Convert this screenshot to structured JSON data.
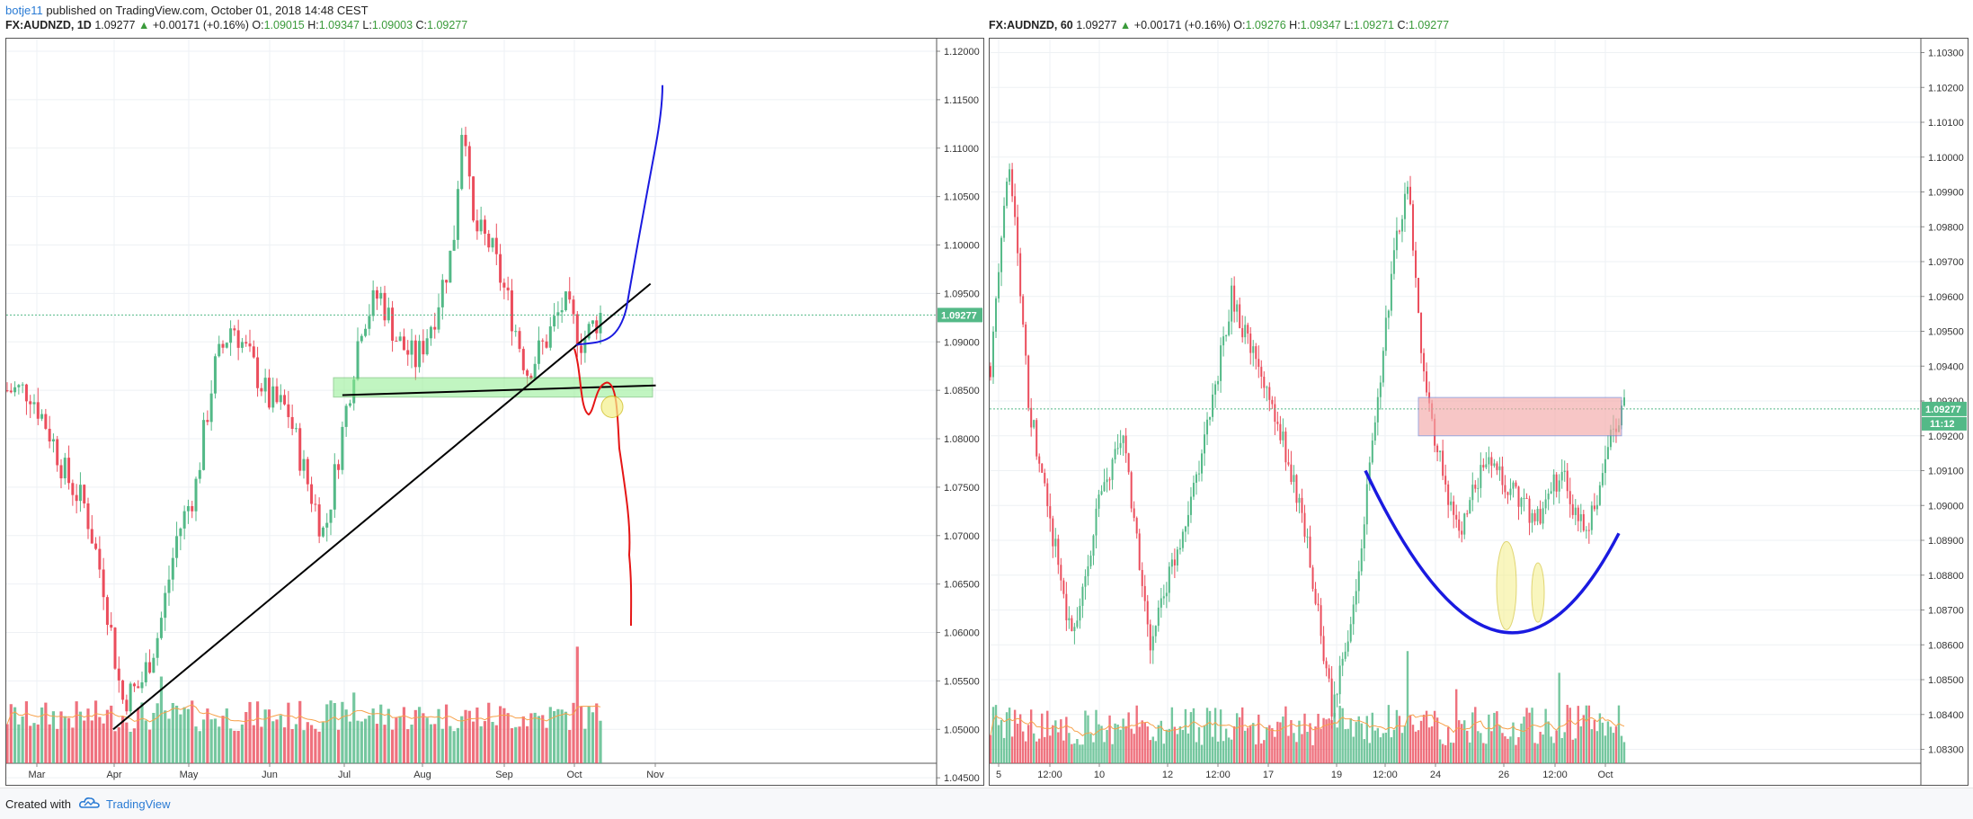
{
  "header": {
    "author": "botje11",
    "published": "published on TradingView.com, October 01, 2018 14:48 CEST"
  },
  "left_legend": {
    "symbol": "FX:AUDNZD, 1D",
    "last": "1.09277",
    "change": "+0.00171 (+0.16%)",
    "o_label": "O:",
    "o": "1.09015",
    "h_label": "H:",
    "h": "1.09347",
    "l_label": "L:",
    "l": "1.09003",
    "c_label": "C:",
    "c": "1.09277"
  },
  "right_legend": {
    "symbol": "FX:AUDNZD, 60",
    "last": "1.09277",
    "change": "+0.00171 (+0.16%)",
    "o_label": "O:",
    "o": "1.09276",
    "h_label": "H:",
    "h": "1.09347",
    "l_label": "L:",
    "l": "1.09271",
    "c_label": "C:",
    "c": "1.09277"
  },
  "colors": {
    "up": "#53b987",
    "down": "#eb4d5c",
    "volume_ma": "#f7a14a",
    "price_line": "#53b987",
    "grid": "#eef1f4",
    "axis_text": "#333333",
    "support_zone": "#90ee90",
    "resistance_zone": "#f4a9a9",
    "projection_up": "#1a1ae0",
    "projection_down": "#e51515",
    "trendline": "#000000",
    "cup": "#1a1ae0"
  },
  "footer": {
    "created_with": "Created with",
    "brand": "TradingView"
  },
  "chart_data": [
    {
      "type": "candlestick",
      "symbol": "FX:AUDNZD",
      "interval": "1D",
      "ylim": [
        1.0465,
        1.1213
      ],
      "y_ticks": [
        "1.12000",
        "1.11500",
        "1.11000",
        "1.10500",
        "1.10000",
        "1.09500",
        "1.09000",
        "1.08500",
        "1.08000",
        "1.07500",
        "1.07000",
        "1.06500",
        "1.06000",
        "1.05500",
        "1.05000",
        "1.04500"
      ],
      "x_ticks": [
        "Mar",
        "Apr",
        "May",
        "Jun",
        "Jul",
        "Aug",
        "Sep",
        "Oct",
        "Nov"
      ],
      "last_price_label": "1.09277",
      "legend": "none",
      "grid": true,
      "price_path": [
        {
          "date": "2018-02-26",
          "close": 1.085
        },
        {
          "date": "2018-03-05",
          "close": 1.081
        },
        {
          "date": "2018-03-12",
          "close": 1.076
        },
        {
          "date": "2018-03-19",
          "close": 1.073
        },
        {
          "date": "2018-03-26",
          "close": 1.065
        },
        {
          "date": "2018-04-02",
          "close": 1.053
        },
        {
          "date": "2018-04-09",
          "close": 1.0545
        },
        {
          "date": "2018-04-16",
          "close": 1.06
        },
        {
          "date": "2018-04-23",
          "close": 1.07
        },
        {
          "date": "2018-04-30",
          "close": 1.075
        },
        {
          "date": "2018-05-07",
          "close": 1.087
        },
        {
          "date": "2018-05-14",
          "close": 1.092
        },
        {
          "date": "2018-05-21",
          "close": 1.088
        },
        {
          "date": "2018-05-28",
          "close": 1.084
        },
        {
          "date": "2018-06-04",
          "close": 1.083
        },
        {
          "date": "2018-06-11",
          "close": 1.076
        },
        {
          "date": "2018-06-18",
          "close": 1.07
        },
        {
          "date": "2018-06-25",
          "close": 1.081
        },
        {
          "date": "2018-07-02",
          "close": 1.092
        },
        {
          "date": "2018-07-09",
          "close": 1.095
        },
        {
          "date": "2018-07-16",
          "close": 1.09
        },
        {
          "date": "2018-07-23",
          "close": 1.088
        },
        {
          "date": "2018-07-30",
          "close": 1.093
        },
        {
          "date": "2018-08-06",
          "close": 1.1
        },
        {
          "date": "2018-08-10",
          "close": 1.115
        },
        {
          "date": "2018-08-13",
          "close": 1.102
        },
        {
          "date": "2018-08-20",
          "close": 1.1
        },
        {
          "date": "2018-08-27",
          "close": 1.094
        },
        {
          "date": "2018-09-03",
          "close": 1.087
        },
        {
          "date": "2018-09-10",
          "close": 1.09
        },
        {
          "date": "2018-09-17",
          "close": 1.094
        },
        {
          "date": "2018-09-24",
          "close": 1.09
        },
        {
          "date": "2018-10-01",
          "close": 1.0928
        }
      ],
      "annotations": [
        {
          "kind": "zone",
          "label": "support",
          "y_range": [
            1.0843,
            1.0863
          ]
        },
        {
          "kind": "trendline",
          "from": {
            "date": "2018-03-30",
            "price": 1.05
          },
          "to": {
            "date": "2018-10-20",
            "price": 1.096
          }
        },
        {
          "kind": "horizontal_line",
          "from": {
            "date": "2018-06-25",
            "price": 1.0845
          },
          "to": {
            "date": "2018-10-22",
            "price": 1.0855
          }
        },
        {
          "kind": "projection_up",
          "end_price": 1.1165
        },
        {
          "kind": "projection_down",
          "end_price": 1.0607
        }
      ]
    },
    {
      "type": "candlestick",
      "symbol": "FX:AUDNZD",
      "interval": "60",
      "ylim": [
        1.0826,
        1.1034
      ],
      "y_ticks": [
        "1.10300",
        "1.10200",
        "1.10100",
        "1.10000",
        "1.09900",
        "1.09800",
        "1.09700",
        "1.09600",
        "1.09500",
        "1.09400",
        "1.09300",
        "1.09200",
        "1.09100",
        "1.09000",
        "1.08900",
        "1.08800",
        "1.08700",
        "1.08600",
        "1.08500",
        "1.08400",
        "1.08300"
      ],
      "x_ticks": [
        "5",
        "12:00",
        "10",
        "12",
        "12:00",
        "17",
        "19",
        "12:00",
        "24",
        "26",
        "12:00",
        "Oct"
      ],
      "last_price_label": "1.09277",
      "countdown_label": "11:12",
      "legend": "none",
      "grid": true,
      "price_path": [
        {
          "t": 0,
          "close": 1.094
        },
        {
          "t": 3,
          "close": 1.1
        },
        {
          "t": 6,
          "close": 1.093
        },
        {
          "t": 9,
          "close": 1.09
        },
        {
          "t": 13,
          "close": 1.086
        },
        {
          "t": 17,
          "close": 1.09
        },
        {
          "t": 21,
          "close": 1.092
        },
        {
          "t": 25,
          "close": 1.086
        },
        {
          "t": 30,
          "close": 1.089
        },
        {
          "t": 34,
          "close": 1.092
        },
        {
          "t": 38,
          "close": 1.096
        },
        {
          "t": 42,
          "close": 1.094
        },
        {
          "t": 46,
          "close": 1.092
        },
        {
          "t": 50,
          "close": 1.089
        },
        {
          "t": 54,
          "close": 1.084
        },
        {
          "t": 58,
          "close": 1.088
        },
        {
          "t": 61,
          "close": 1.093
        },
        {
          "t": 64,
          "close": 1.0975
        },
        {
          "t": 66,
          "close": 1.0995
        },
        {
          "t": 68,
          "close": 1.094
        },
        {
          "t": 70,
          "close": 1.092
        },
        {
          "t": 74,
          "close": 1.089
        },
        {
          "t": 78,
          "close": 1.0915
        },
        {
          "t": 82,
          "close": 1.0905
        },
        {
          "t": 86,
          "close": 1.0895
        },
        {
          "t": 90,
          "close": 1.091
        },
        {
          "t": 94,
          "close": 1.089
        },
        {
          "t": 98,
          "close": 1.092
        },
        {
          "t": 100,
          "close": 1.0928
        }
      ],
      "annotations": [
        {
          "kind": "zone",
          "label": "resistance",
          "y_range": [
            1.092,
            1.0931
          ]
        },
        {
          "kind": "arc",
          "label": "rounded bottom",
          "low": 1.0868
        },
        {
          "kind": "ellipse",
          "count": 2
        }
      ]
    }
  ]
}
